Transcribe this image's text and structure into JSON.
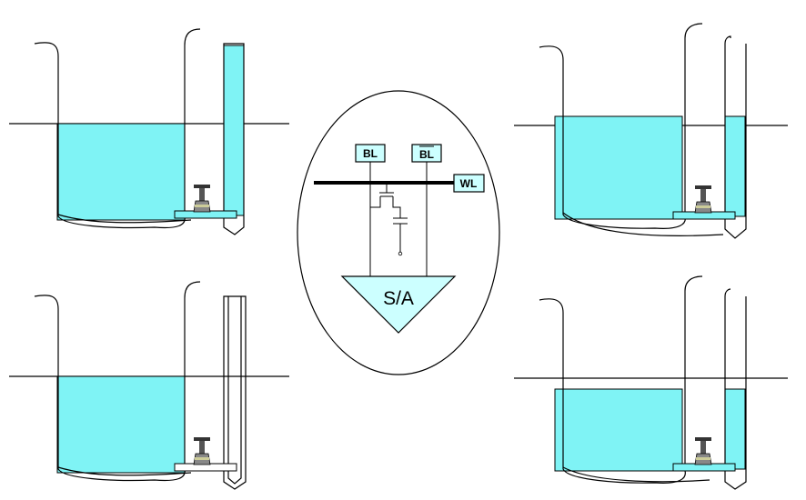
{
  "panels": [
    {
      "id": "top-left",
      "main_tank_filled": true,
      "tube_filled": true,
      "tube_level": "full"
    },
    {
      "id": "top-right",
      "main_tank_filled": true,
      "tube_filled": true,
      "tube_level": "equalized"
    },
    {
      "id": "bottom-left",
      "main_tank_filled": true,
      "tube_filled": false,
      "tube_level": "empty"
    },
    {
      "id": "bottom-right",
      "main_tank_filled": true,
      "tube_filled": true,
      "tube_level": "equalized"
    }
  ],
  "circuit": {
    "bl_label": "BL",
    "blbar_label": "BL",
    "wl_label": "WL",
    "sense_amp_label": "S/A"
  },
  "colors": {
    "water": "#7ff3f5",
    "label_fill": "#ccffff",
    "line": "#000000"
  },
  "icons": [
    "valve-icon"
  ]
}
